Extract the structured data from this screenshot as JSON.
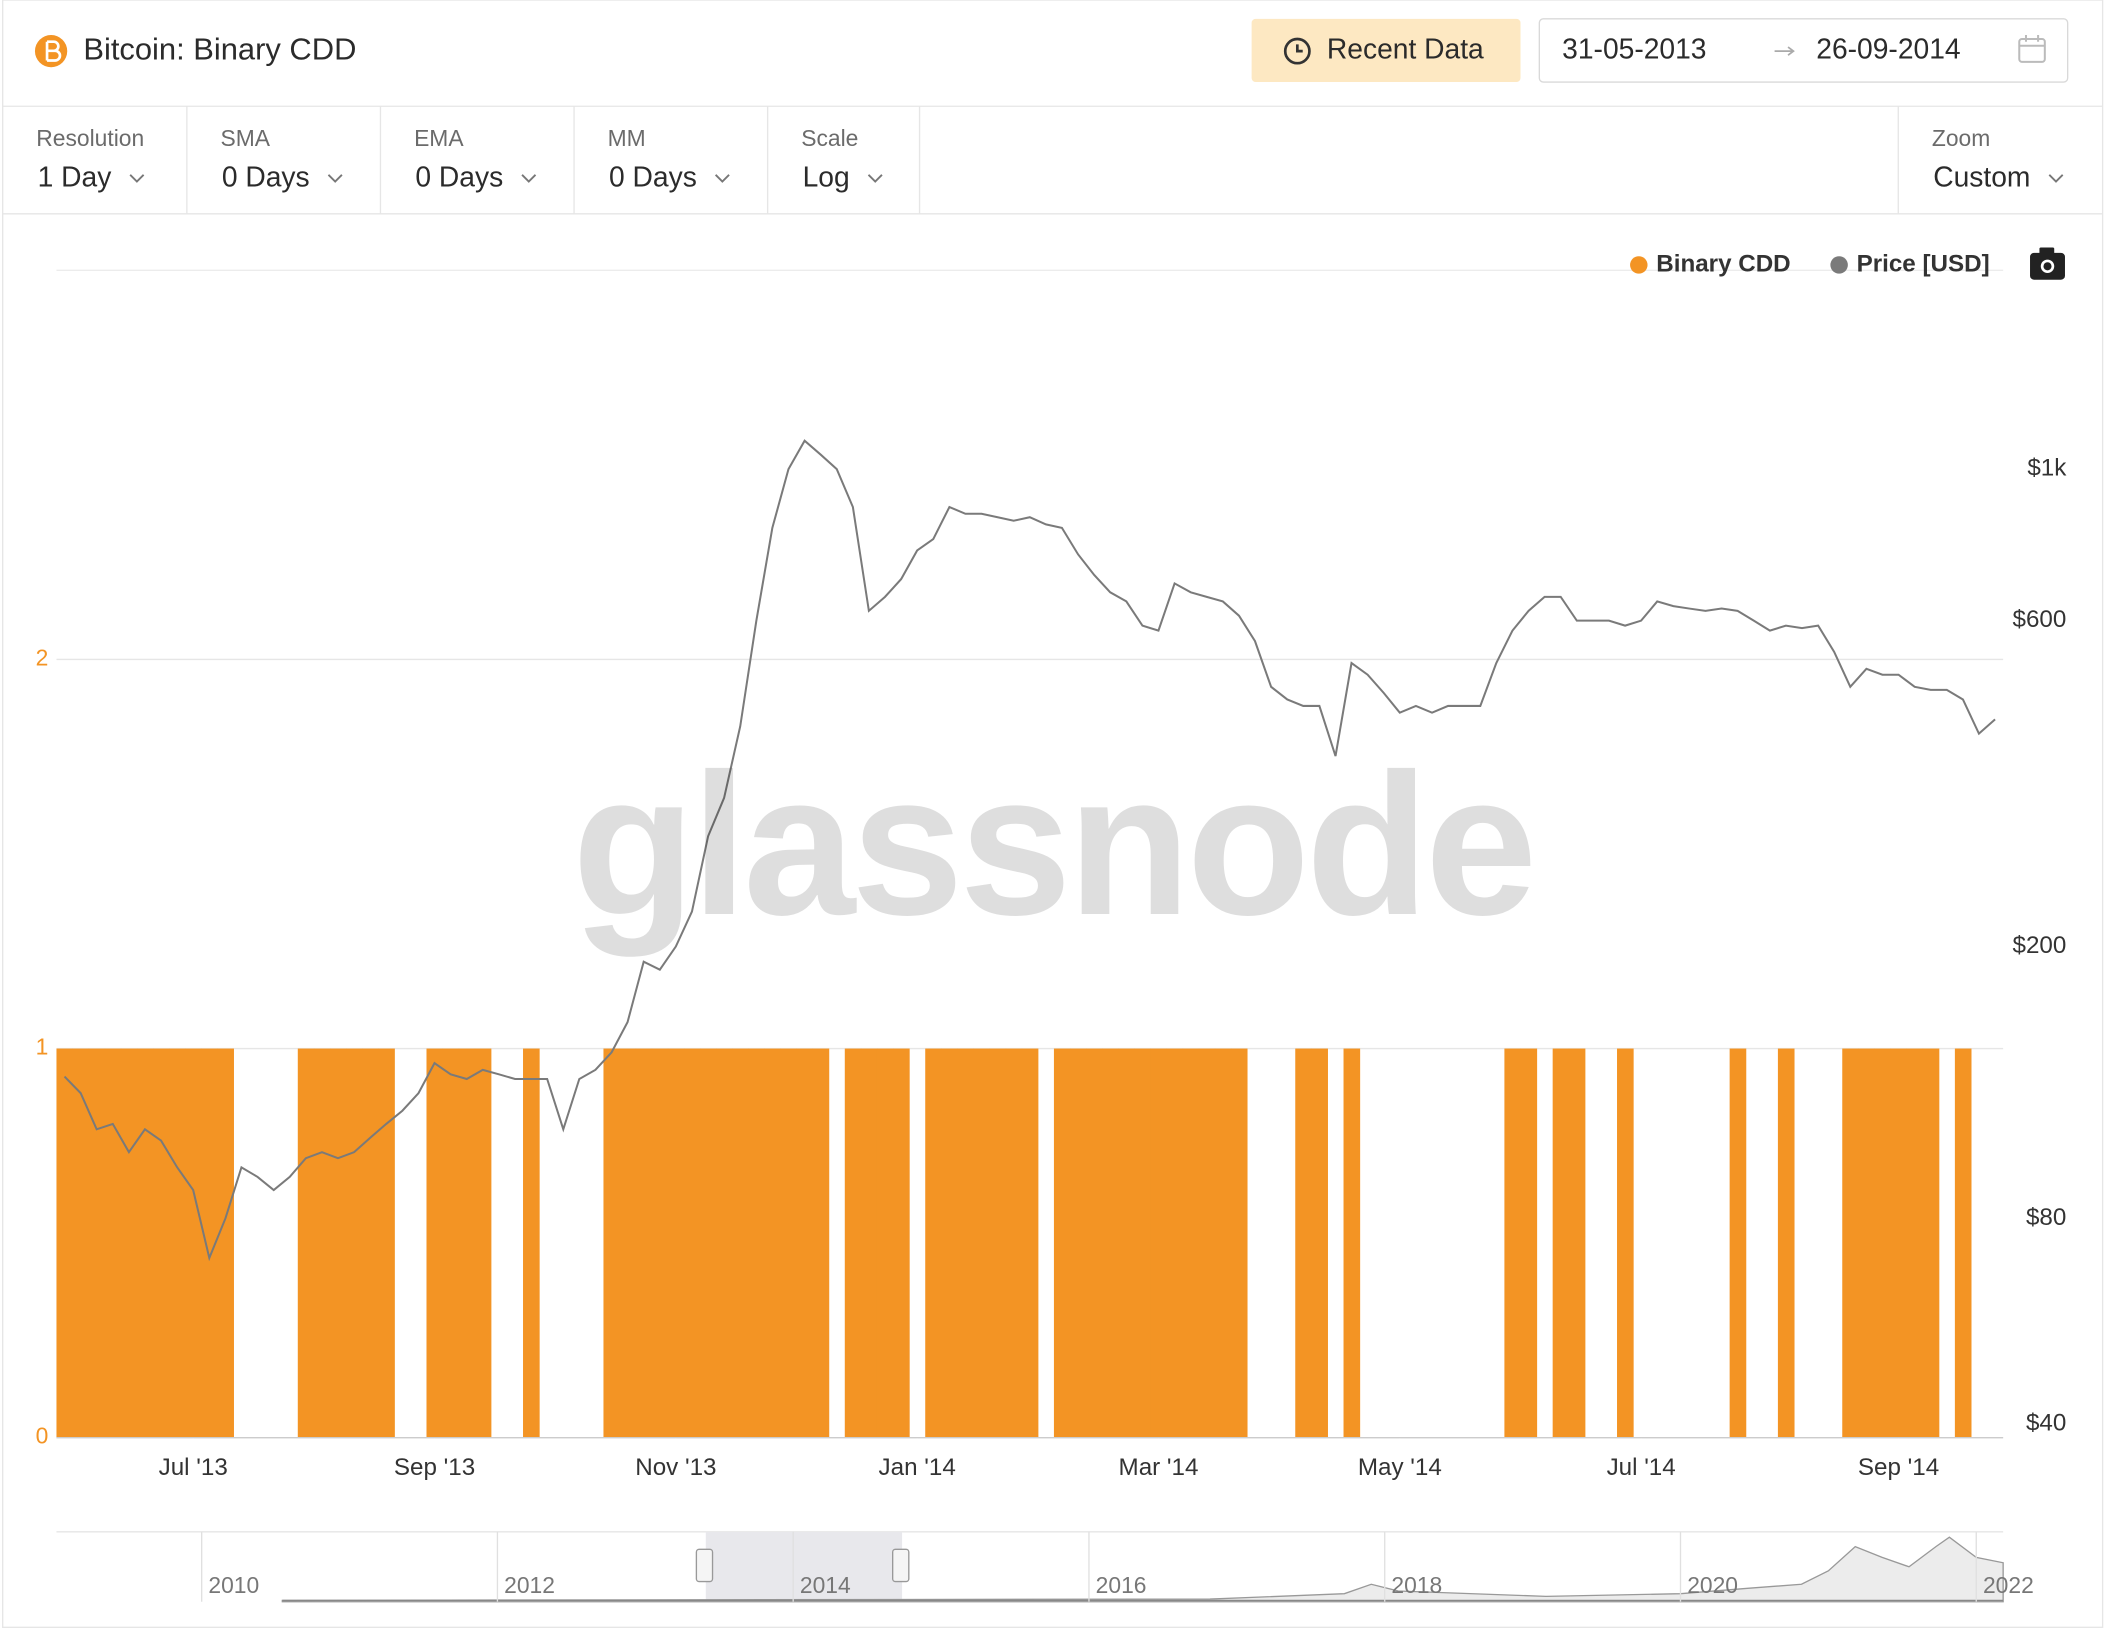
{
  "header": {
    "title": "Bitcoin: Binary CDD",
    "recent_button": "Recent Data",
    "date_from": "31-05-2013",
    "date_to": "26-09-2014"
  },
  "controls": [
    {
      "label": "Resolution",
      "value": "1 Day"
    },
    {
      "label": "SMA",
      "value": "0 Days"
    },
    {
      "label": "EMA",
      "value": "0 Days"
    },
    {
      "label": "MM",
      "value": "0 Days"
    },
    {
      "label": "Scale",
      "value": "Log"
    },
    {
      "label": "Zoom",
      "value": "Custom"
    }
  ],
  "watermark": "glassnode",
  "navigator": {
    "labels": [
      "2010",
      "2012",
      "2014",
      "2016",
      "2018",
      "2020",
      "2022"
    ]
  },
  "chart_data": {
    "type": "bar-line",
    "categories": [
      null,
      null,
      null,
      null,
      null,
      null,
      null,
      null,
      "Jul '13",
      null,
      null,
      null,
      null,
      null,
      null,
      null,
      null,
      null,
      null,
      null,
      null,
      null,
      null,
      "Sep '13",
      null,
      null,
      null,
      null,
      null,
      null,
      null,
      null,
      null,
      null,
      null,
      null,
      null,
      null,
      "Nov '13",
      null,
      null,
      null,
      null,
      null,
      null,
      null,
      null,
      null,
      null,
      null,
      null,
      null,
      null,
      "Jan '14",
      null,
      null,
      null,
      null,
      null,
      null,
      null,
      null,
      null,
      null,
      null,
      null,
      null,
      null,
      "Mar '14",
      null,
      null,
      null,
      null,
      null,
      null,
      null,
      null,
      null,
      null,
      null,
      null,
      null,
      null,
      "May '14",
      null,
      null,
      null,
      null,
      null,
      null,
      null,
      null,
      null,
      null,
      null,
      null,
      null,
      null,
      "Jul '14",
      null,
      null,
      null,
      null,
      null,
      null,
      null,
      null,
      null,
      null,
      null,
      null,
      null,
      null,
      null,
      "Sep '14",
      null,
      null,
      null,
      null,
      null,
      null
    ],
    "series": [
      {
        "name": "Binary CDD",
        "type": "bar",
        "color": "#f39424",
        "axis": "y",
        "values": [
          1,
          1,
          1,
          1,
          1,
          1,
          1,
          1,
          1,
          1,
          1,
          0,
          0,
          0,
          0,
          1,
          1,
          1,
          1,
          1,
          1,
          0,
          0,
          1,
          1,
          1,
          1,
          0,
          0,
          1,
          0,
          0,
          0,
          0,
          1,
          1,
          1,
          1,
          1,
          1,
          1,
          1,
          1,
          1,
          1,
          1,
          1,
          1,
          0,
          1,
          1,
          1,
          1,
          0,
          1,
          1,
          1,
          1,
          1,
          1,
          1,
          0,
          1,
          1,
          1,
          1,
          1,
          1,
          1,
          1,
          1,
          1,
          1,
          1,
          0,
          0,
          0,
          1,
          1,
          0,
          1,
          0,
          0,
          0,
          0,
          0,
          0,
          0,
          0,
          0,
          1,
          1,
          0,
          1,
          1,
          0,
          0,
          1,
          0,
          0,
          0,
          0,
          0,
          0,
          1,
          0,
          0,
          1,
          0,
          0,
          0,
          1,
          1,
          1,
          1,
          1,
          1,
          0,
          1,
          0,
          0
        ]
      },
      {
        "name": "Price [USD]",
        "type": "line",
        "color": "#7a7a7a",
        "axis": "y2",
        "values": [
          129,
          122,
          108,
          110,
          100,
          108,
          104,
          95,
          88,
          70,
          80,
          95,
          92,
          88,
          92,
          98,
          100,
          98,
          100,
          105,
          110,
          115,
          122,
          135,
          130,
          128,
          132,
          130,
          128,
          128,
          128,
          108,
          128,
          132,
          140,
          155,
          190,
          185,
          200,
          225,
          290,
          330,
          420,
          600,
          820,
          1000,
          1100,
          1050,
          1000,
          880,
          620,
          650,
          690,
          760,
          790,
          880,
          860,
          860,
          850,
          840,
          850,
          830,
          820,
          750,
          700,
          660,
          640,
          590,
          580,
          680,
          660,
          650,
          640,
          610,
          560,
          480,
          460,
          450,
          450,
          380,
          520,
          500,
          470,
          440,
          450,
          440,
          450,
          450,
          450,
          520,
          580,
          620,
          650,
          650,
          600,
          600,
          600,
          590,
          600,
          640,
          630,
          625,
          620,
          625,
          620,
          600,
          580,
          590,
          585,
          590,
          540,
          480,
          510,
          500,
          500,
          480,
          475,
          475,
          460,
          410,
          430
        ]
      }
    ],
    "ylim": [
      0,
      3
    ],
    "yticks": [
      0,
      1,
      2
    ],
    "y2lim": [
      38.2,
      1954
    ],
    "y2ticks": [
      {
        "value": 40,
        "label": "$40"
      },
      {
        "value": 80,
        "label": "$80"
      },
      {
        "value": 200,
        "label": "$200"
      },
      {
        "value": 600,
        "label": "$600"
      },
      {
        "value": 1000,
        "label": "$1k"
      }
    ],
    "y2_log": true,
    "grid": true,
    "legend": "top-right"
  }
}
